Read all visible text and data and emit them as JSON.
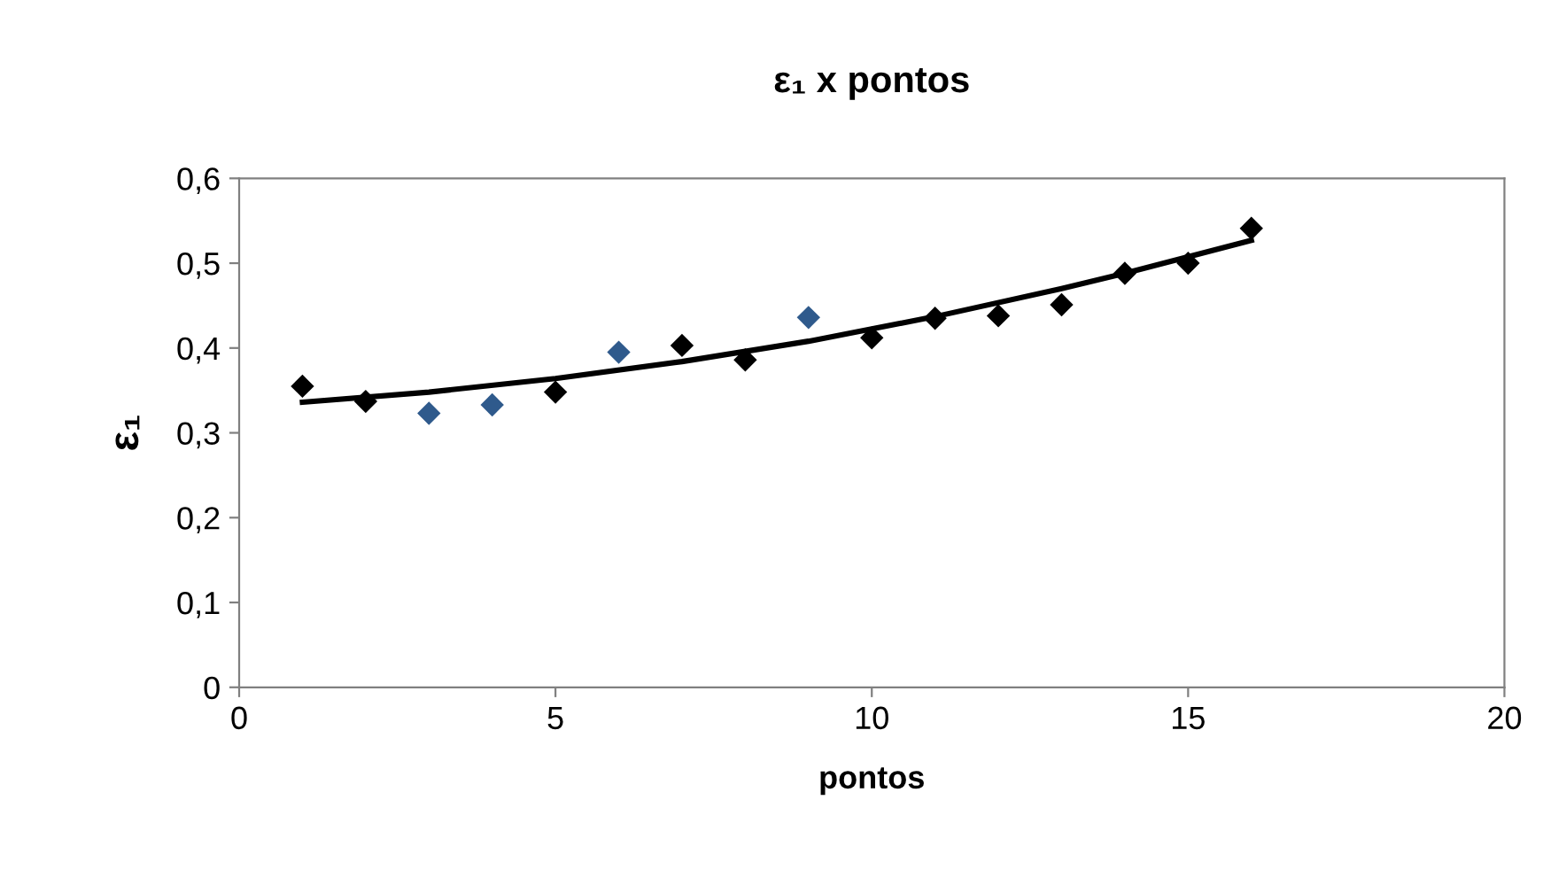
{
  "chart_data": {
    "type": "scatter",
    "title": "ε₁ x pontos",
    "xlabel": "pontos",
    "ylabel": "ε₁",
    "xlim": [
      0,
      20
    ],
    "xticks": [
      0,
      5,
      10,
      15,
      20
    ],
    "ylim": [
      0,
      0.6
    ],
    "yticks": [
      0,
      {
        "value": 0.1,
        "label": "0,1"
      },
      {
        "value": 0.2,
        "label": "0,2"
      },
      {
        "value": 0.3,
        "label": "0,3"
      },
      {
        "value": 0.4,
        "label": "0,4"
      },
      {
        "value": 0.5,
        "label": "0,5"
      },
      {
        "value": 0.6,
        "label": "0,6"
      }
    ],
    "grid": false,
    "marker": "diamond",
    "series": [
      {
        "color": "#000000",
        "x": [
          1,
          2,
          5,
          7,
          8,
          10,
          11,
          12,
          13,
          14,
          15,
          16
        ],
        "values": [
          0.355,
          0.337,
          0.348,
          0.403,
          0.386,
          0.412,
          0.435,
          0.438,
          0.451,
          0.488,
          0.5,
          0.541
        ]
      },
      {
        "color": "#2f5a8c",
        "x": [
          3,
          4,
          6,
          9
        ],
        "values": [
          0.323,
          0.333,
          0.395,
          0.436
        ]
      },
      {
        "type": "line",
        "color": "#000000",
        "marker": "none",
        "line_style": "solid",
        "x": [
          1,
          3,
          5,
          7,
          9,
          11,
          13,
          14,
          16
        ],
        "values": [
          0.336,
          0.348,
          0.364,
          0.384,
          0.408,
          0.437,
          0.47,
          0.488,
          0.527
        ]
      }
    ]
  }
}
